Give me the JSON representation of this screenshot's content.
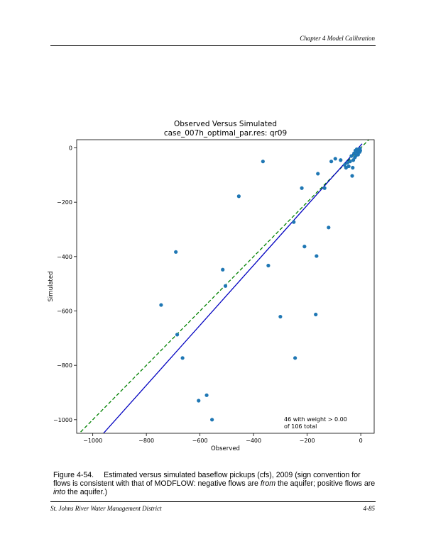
{
  "header": {
    "chapter": "Chapter 4 Model Calibration"
  },
  "chart_data": {
    "type": "scatter",
    "title": "Observed Versus Simulated",
    "subtitle": "case_007h_optimal_par.res: qr09",
    "xlabel": "Observed",
    "ylabel": "Simulated",
    "xlim": [
      -1060,
      50
    ],
    "ylim": [
      -1050,
      30
    ],
    "xticks": [
      -1000,
      -800,
      -600,
      -400,
      -200,
      0
    ],
    "yticks": [
      0,
      -200,
      -400,
      -600,
      -800,
      -1000
    ],
    "xtick_labels": [
      "−1000",
      "−800",
      "−600",
      "−400",
      "−200",
      "0"
    ],
    "ytick_labels": [
      "0",
      "−200",
      "−400",
      "−600",
      "−800",
      "−1000"
    ],
    "grid": false,
    "marker_color": "#1f77b4",
    "lines": [
      {
        "style": "dashed",
        "color": "#008000",
        "x": [
          -1060,
          50
        ],
        "y": [
          -1060,
          50
        ]
      },
      {
        "style": "solid",
        "color": "#0000c0",
        "x": [
          -960,
          5
        ],
        "y": [
          -1050,
          15
        ]
      }
    ],
    "annotation": [
      "46 with weight > 0.00",
      "of 106 total"
    ],
    "points": [
      [
        -365,
        -50
      ],
      [
        -455,
        -178
      ],
      [
        -690,
        -383
      ],
      [
        -745,
        -578
      ],
      [
        -685,
        -687
      ],
      [
        -665,
        -773
      ],
      [
        -605,
        -930
      ],
      [
        -575,
        -910
      ],
      [
        -555,
        -1000
      ],
      [
        -515,
        -448
      ],
      [
        -505,
        -508
      ],
      [
        -345,
        -433
      ],
      [
        -300,
        -621
      ],
      [
        -250,
        -273
      ],
      [
        -245,
        -773
      ],
      [
        -220,
        -148
      ],
      [
        -210,
        -363
      ],
      [
        -168,
        -613
      ],
      [
        -165,
        -398
      ],
      [
        -160,
        -95
      ],
      [
        -135,
        -148
      ],
      [
        -120,
        -293
      ],
      [
        -110,
        -50
      ],
      [
        -95,
        -40
      ],
      [
        -75,
        -45
      ],
      [
        -60,
        -63
      ],
      [
        -55,
        -73
      ],
      [
        -50,
        -55
      ],
      [
        -45,
        -68
      ],
      [
        -40,
        -50
      ],
      [
        -35,
        -30
      ],
      [
        -32,
        -103
      ],
      [
        -30,
        -73
      ],
      [
        -28,
        -45
      ],
      [
        -25,
        -20
      ],
      [
        -22,
        -35
      ],
      [
        -20,
        -10
      ],
      [
        -18,
        -28
      ],
      [
        -15,
        -5
      ],
      [
        -12,
        -18
      ],
      [
        -10,
        -25
      ],
      [
        -8,
        -12
      ],
      [
        -6,
        -8
      ],
      [
        -4,
        -15
      ],
      [
        -3,
        -3
      ],
      [
        -2,
        -10
      ]
    ]
  },
  "caption": {
    "number": "Figure 4-54.",
    "part1": "Estimated versus simulated baseflow pickups (cfs), 2009 (sign convention for flows is consistent with that of MODFLOW: negative flows are ",
    "em1": "from",
    "part2": " the aquifer; positive flows are ",
    "em2": "into",
    "part3": " the aquifer.)"
  },
  "footer": {
    "left": "St. Johns River Water Management District",
    "right": "4-85"
  }
}
